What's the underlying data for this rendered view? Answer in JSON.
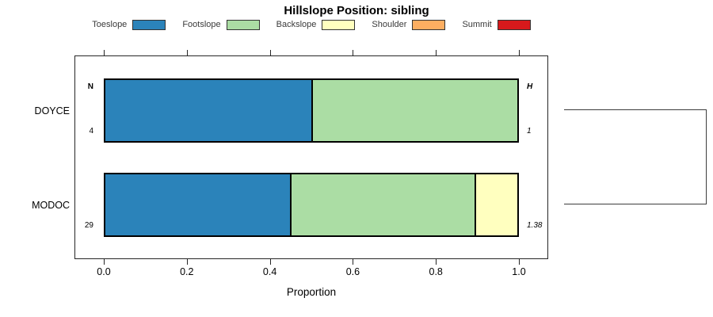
{
  "title": "Hillslope Position: sibling",
  "xlabel": "Proportion",
  "chart_data": {
    "type": "bar",
    "orientation": "horizontal-stacked",
    "title": "Hillslope Position: sibling",
    "xlabel": "Proportion",
    "xlim": [
      0,
      1
    ],
    "x_ticks": [
      "0.0",
      "0.2",
      "0.4",
      "0.6",
      "0.8",
      "1.0"
    ],
    "grid": false,
    "legend_position": "top",
    "categories": [
      "DOYCE",
      "MODOC"
    ],
    "series": [
      {
        "name": "Toeslope",
        "color": "#2B83BA",
        "values": [
          0.5,
          0.448
        ]
      },
      {
        "name": "Footslope",
        "color": "#ABDDA4",
        "values": [
          0.5,
          0.449
        ]
      },
      {
        "name": "Backslope",
        "color": "#FFFFBF",
        "values": [
          0.0,
          0.103
        ]
      },
      {
        "name": "Shoulder",
        "color": "#FDAE61",
        "values": [
          0.0,
          0.0
        ]
      },
      {
        "name": "Summit",
        "color": "#D7191C",
        "values": [
          0.0,
          0.0
        ]
      }
    ],
    "annotations": {
      "n_header": "N",
      "h_header": "H",
      "rows": [
        {
          "category": "DOYCE",
          "n": "4",
          "h": "1"
        },
        {
          "category": "MODOC",
          "n": "29",
          "h": "1.38"
        }
      ]
    },
    "sibling_bracket": {
      "connects": [
        "DOYCE",
        "MODOC"
      ],
      "side": "right"
    }
  }
}
